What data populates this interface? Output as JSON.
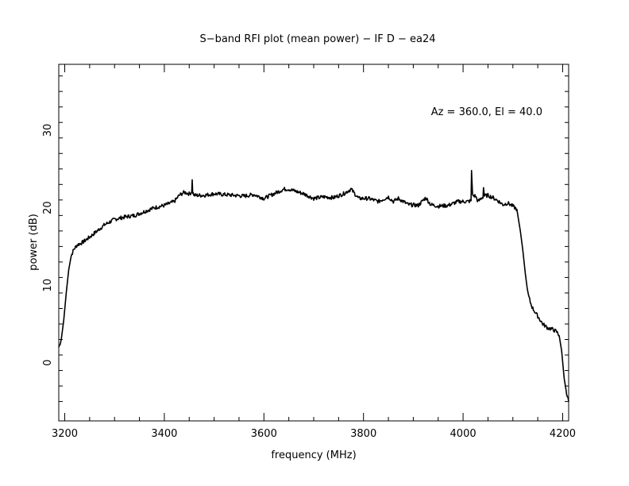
{
  "chart_data": {
    "type": "line",
    "title": "S−band RFI plot (mean power) − IF D − ea24",
    "xlabel": "frequency (MHz)",
    "ylabel": "power (dB)",
    "annotation": "Az = 360.0, El = 40.0",
    "xlim": [
      3188,
      4212
    ],
    "ylim": [
      -7.5,
      38.5
    ],
    "x_ticks": [
      3200,
      3400,
      3600,
      3800,
      4000,
      4200
    ],
    "x_tick_labels": [
      "3200",
      "3400",
      "3600",
      "3800",
      "4000",
      "4200"
    ],
    "y_ticks": [
      0,
      10,
      20,
      30
    ],
    "y_tick_labels": [
      "0",
      "10",
      "20",
      "30"
    ],
    "grid": false,
    "line_color": "#000000",
    "series": [
      {
        "x": [
          3188,
          3193,
          3198,
          3203,
          3208,
          3213,
          3218,
          3225,
          3235,
          3250,
          3265,
          3280,
          3300,
          3320,
          3340,
          3360,
          3380,
          3400,
          3420,
          3430,
          3440,
          3450,
          3455,
          3456,
          3457,
          3460,
          3480,
          3500,
          3520,
          3540,
          3560,
          3580,
          3600,
          3620,
          3640,
          3650,
          3660,
          3680,
          3700,
          3720,
          3740,
          3760,
          3775,
          3790,
          3810,
          3830,
          3850,
          3860,
          3870,
          3890,
          3910,
          3925,
          3935,
          3950,
          3970,
          3990,
          4010,
          4016,
          4017,
          4019,
          4025,
          4030,
          4040,
          4041,
          4043,
          4050,
          4060,
          4070,
          4080,
          4090,
          4100,
          4108,
          4115,
          4120,
          4125,
          4130,
          4135,
          4140,
          4145,
          4150,
          4160,
          4170,
          4180,
          4188,
          4193,
          4198,
          4203,
          4208,
          4212
        ],
        "y": [
          2.0,
          3.0,
          5.5,
          9.0,
          12.0,
          13.8,
          14.6,
          15.2,
          15.5,
          16.2,
          17.0,
          17.8,
          18.5,
          18.8,
          19.0,
          19.5,
          20.0,
          20.3,
          20.8,
          21.6,
          22.0,
          21.8,
          22.0,
          23.6,
          22.0,
          21.6,
          21.6,
          21.8,
          21.7,
          21.6,
          21.5,
          21.7,
          21.2,
          21.8,
          22.4,
          22.4,
          22.2,
          21.8,
          21.2,
          21.4,
          21.3,
          21.8,
          22.4,
          21.2,
          21.2,
          20.8,
          21.4,
          20.8,
          21.2,
          20.4,
          20.3,
          21.3,
          20.4,
          20.2,
          20.3,
          20.8,
          20.8,
          20.9,
          24.8,
          21.6,
          21.5,
          20.8,
          21.4,
          22.6,
          21.5,
          21.6,
          21.3,
          20.9,
          20.4,
          20.6,
          20.2,
          19.8,
          17.0,
          14.5,
          11.5,
          9.0,
          7.8,
          7.0,
          6.5,
          6.0,
          5.0,
          4.5,
          4.3,
          4.0,
          3.5,
          1.5,
          -2.0,
          -4.0,
          -5.0
        ]
      }
    ]
  }
}
